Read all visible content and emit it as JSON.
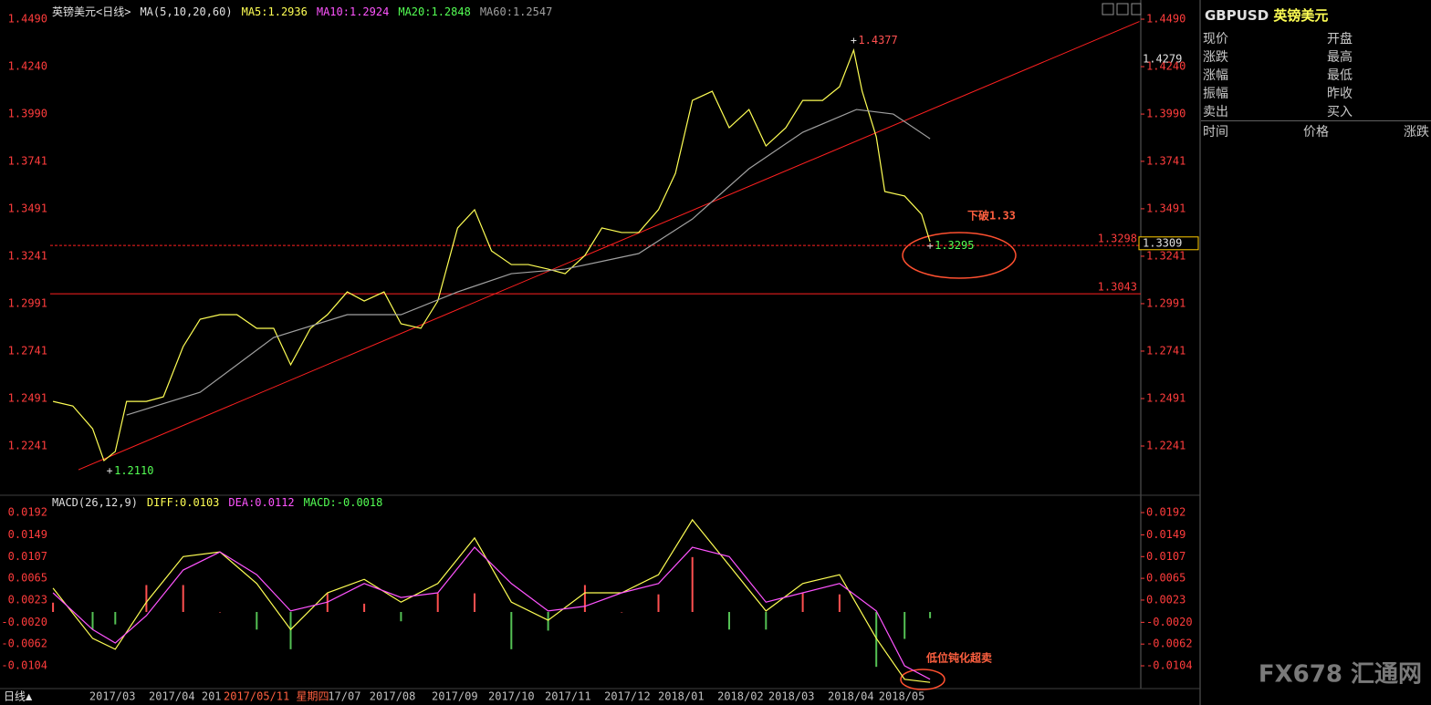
{
  "header": {
    "title": "英镑美元<日线>",
    "indicator": "MA(5,10,20,60)",
    "readouts": [
      {
        "text": "MA5:1.2936",
        "color": "#ffff54"
      },
      {
        "text": "MA10:1.2924",
        "color": "#ff54ff"
      },
      {
        "text": "MA20:1.2848",
        "color": "#54ff54"
      },
      {
        "text": "MA60:1.2547",
        "color": "#a0a0a0"
      }
    ]
  },
  "chart_data": [
    {
      "type": "line",
      "xlim": [
        0,
        385
      ],
      "ylim": [
        1.1996,
        1.4543
      ],
      "yticks": [
        {
          "value": 1.449,
          "label": "1.4490"
        },
        {
          "value": 1.424,
          "label": "1.4240"
        },
        {
          "value": 1.399,
          "label": "1.3990"
        },
        1.3741,
        1.3491,
        1.3241,
        1.2991,
        1.2741,
        1.2491,
        1.2241
      ],
      "series": [
        {
          "color": "#ffff54",
          "x": [
            1,
            8,
            15,
            19,
            23,
            27,
            34,
            40,
            47,
            53,
            60,
            66,
            73,
            79,
            85,
            92,
            98,
            105,
            111,
            118,
            124,
            131,
            137,
            144,
            150,
            156,
            163,
            169,
            176,
            182,
            189,
            195,
            202,
            208,
            215,
            221,
            227,
            234,
            240,
            247,
            253,
            260,
            266,
            273,
            279,
            284,
            287,
            292,
            295,
            302,
            308,
            311
          ],
          "values": [
            1.2476,
            1.2452,
            1.2332,
            1.2164,
            1.2212,
            1.2476,
            1.2476,
            1.25,
            1.2765,
            1.2909,
            1.2933,
            1.2933,
            1.2861,
            1.2861,
            1.2669,
            1.2861,
            1.2933,
            1.3053,
            1.3005,
            1.3053,
            1.2885,
            1.2861,
            1.3005,
            1.339,
            1.3486,
            1.3269,
            1.3197,
            1.3197,
            1.3173,
            1.3149,
            1.3245,
            1.339,
            1.3366,
            1.3366,
            1.3486,
            1.3678,
            1.4062,
            1.411,
            1.3918,
            1.4014,
            1.3822,
            1.3918,
            1.4062,
            1.4062,
            1.4134,
            1.4327,
            1.411,
            1.387,
            1.3582,
            1.3558,
            1.3462,
            1.3317
          ]
        },
        {
          "color": "#a0a0a0",
          "x": [
            27,
            53,
            79,
            105,
            124,
            144,
            163,
            182,
            208,
            227,
            247,
            266,
            285,
            298,
            311
          ],
          "values": [
            1.2404,
            1.2524,
            1.2813,
            1.2933,
            1.2933,
            1.3053,
            1.3149,
            1.3173,
            1.3255,
            1.3437,
            1.3702,
            1.3894,
            1.4014,
            1.399,
            1.386
          ]
        }
      ],
      "trendline": {
        "color": "#ff2020",
        "x": [
          10,
          385
        ],
        "values": [
          1.2116,
          1.4478
        ]
      },
      "hlines": [
        {
          "value": 1.3298,
          "dashed": true
        },
        {
          "value": 1.3043,
          "dashed": false
        }
      ],
      "annotations": [
        {
          "x": 284,
          "value": 1.4377,
          "label": "1.4377",
          "color": "#ff5050"
        },
        {
          "x": 21,
          "value": 1.211,
          "label": "1.2110",
          "color": "#54ff54"
        },
        {
          "x": 311,
          "value": 1.3295,
          "label": "1.3295",
          "color": "#54ff54"
        }
      ],
      "right_marks": [
        {
          "value": 1.4279,
          "label": "1.4279",
          "boxed": false
        },
        {
          "value": 1.3309,
          "label": "1.3309",
          "boxed": true
        }
      ],
      "xticks": [
        {
          "value": 22,
          "label": "2017/03"
        },
        {
          "value": 43,
          "label": "2017/04"
        },
        {
          "value": 57,
          "label": "201"
        },
        {
          "value": 104,
          "label": "17/07"
        },
        {
          "value": 121,
          "label": "2017/08"
        },
        {
          "value": 143,
          "label": "2017/09"
        },
        {
          "value": 163,
          "label": "2017/10"
        },
        {
          "value": 183,
          "label": "2017/11"
        },
        {
          "value": 204,
          "label": "2017/12"
        },
        {
          "value": 223,
          "label": "2018/01"
        },
        {
          "value": 244,
          "label": "2018/02"
        },
        {
          "value": 262,
          "label": "2018/03"
        },
        {
          "value": 283,
          "label": "2018/04"
        },
        {
          "value": 301,
          "label": "2018/05"
        }
      ],
      "note": "下破1.33"
    },
    {
      "type": "macd",
      "indicator": "MACD(26,12,9)",
      "readouts": [
        {
          "text": "DIFF:0.0103",
          "color": "#ffff54"
        },
        {
          "text": "DEA:0.0112",
          "color": "#ff54ff"
        },
        {
          "text": "MACD:-0.0018",
          "color": "#54ff54"
        }
      ],
      "xlim": [
        0,
        385
      ],
      "ylim": [
        -0.0148,
        0.0222
      ],
      "yticks": [
        0.0192,
        0.0149,
        0.0107,
        0.0065,
        0.0023,
        {
          "value": -0.002,
          "label": "-0.0020"
        },
        -0.0062,
        -0.0104
      ],
      "x": [
        1,
        15,
        23,
        34,
        47,
        60,
        73,
        85,
        98,
        111,
        124,
        137,
        150,
        163,
        176,
        189,
        202,
        215,
        227,
        240,
        253,
        266,
        279,
        292,
        302,
        311
      ],
      "series": [
        {
          "color": "#ffff54",
          "values": [
            0.0046,
            -0.0051,
            -0.0072,
            0.0019,
            0.0107,
            0.0116,
            0.0055,
            -0.0034,
            0.0037,
            0.0063,
            0.0019,
            0.0055,
            0.0143,
            0.0019,
            -0.0016,
            0.0037,
            0.0037,
            0.0072,
            0.0178,
            0.009,
            0.0002,
            0.0055,
            0.0072,
            -0.0051,
            -0.013,
            -0.0136
          ]
        },
        {
          "color": "#ff54ff",
          "values": [
            0.0037,
            -0.0034,
            -0.006,
            -0.0007,
            0.0081,
            0.0116,
            0.0072,
            0.0002,
            0.0019,
            0.0055,
            0.0028,
            0.0037,
            0.0125,
            0.0055,
            0.0002,
            0.0011,
            0.0037,
            0.0055,
            0.0125,
            0.0107,
            0.0019,
            0.0037,
            0.0055,
            0.0002,
            -0.0104,
            -0.013
          ]
        }
      ],
      "histogram": {
        "up_color": "#ff5050",
        "down_color": "#54c054",
        "values": [
          0.0018,
          -0.0034,
          -0.0024,
          0.0052,
          0.0052,
          0,
          -0.0034,
          -0.0072,
          0.0036,
          0.0016,
          -0.0018,
          0.0036,
          0.0036,
          -0.0072,
          -0.0036,
          0.0052,
          0,
          0.0034,
          0.0106,
          -0.0034,
          -0.0034,
          0.0036,
          0.0034,
          -0.0106,
          -0.0052,
          -0.0012
        ]
      },
      "note": "低位钝化超卖"
    }
  ],
  "cursor_label": "2017/05/11 星期四",
  "footer": {
    "period": "日线▲"
  },
  "side_panel": {
    "symbol": "GBPUSD",
    "name": "英镑美元",
    "rows": [
      [
        "现价",
        "开盘"
      ],
      [
        "涨跌",
        "最高"
      ],
      [
        "涨幅",
        "最低"
      ],
      [
        "振幅",
        "昨收"
      ],
      [
        "卖出",
        "买入"
      ]
    ],
    "columns": [
      "时间",
      "价格",
      "涨跌"
    ]
  },
  "watermark": "FX678 汇通网"
}
